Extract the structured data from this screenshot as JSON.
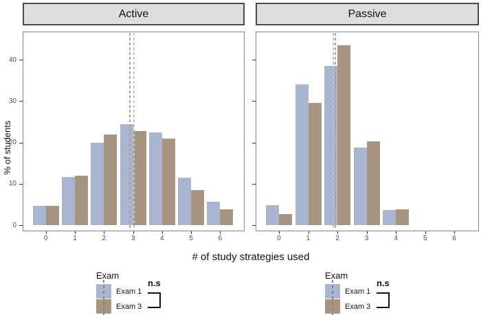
{
  "figure": {
    "x_label": "# of study strategies used",
    "y_label": "% of students"
  },
  "colors": {
    "exam1_fill": "#aab5d0",
    "exam3_fill": "#a79481",
    "exam1_line": "#b9c3d9",
    "exam3_line": "#b3a08d",
    "strip_fill": "#dedede",
    "strip_border": "#4a4a4a",
    "panel_border": "#838383",
    "tick_label": "#4d4d4d"
  },
  "legend": {
    "title": "Exam",
    "items": [
      {
        "label": "Exam 1",
        "color": "#aab5d0"
      },
      {
        "label": "Exam 3",
        "color": "#a79481"
      }
    ],
    "annotation": "n.s"
  },
  "chart_data": [
    {
      "type": "bar",
      "facet": "Active",
      "categories": [
        "0",
        "1",
        "2",
        "3",
        "4",
        "5",
        "6"
      ],
      "series": [
        {
          "name": "Exam 1",
          "color": "#aab5d0",
          "line_color": "#b9c3d9",
          "values": [
            4.7,
            11.6,
            19.9,
            24.5,
            22.4,
            11.5,
            5.6
          ],
          "mean_vline": 3.01
        },
        {
          "name": "Exam 3",
          "color": "#a79481",
          "line_color": "#b3a08d",
          "values": [
            4.7,
            11.9,
            22.0,
            22.7,
            20.9,
            8.5,
            3.9
          ],
          "mean_vline": 2.87
        }
      ],
      "title": "Active",
      "xlabel": "# of study strategies used",
      "ylabel": "% of students",
      "ylim": [
        0,
        47
      ],
      "yticks": [
        0,
        10,
        20,
        30,
        40
      ],
      "grid": false,
      "legend_position": "bottom",
      "legend_annotation": "n.s"
    },
    {
      "type": "bar",
      "facet": "Passive",
      "categories": [
        "0",
        "1",
        "2",
        "3",
        "4",
        "5",
        "6"
      ],
      "series": [
        {
          "name": "Exam 1",
          "color": "#aab5d0",
          "line_color": "#b9c3d9",
          "values": [
            4.8,
            34.1,
            38.6,
            18.7,
            3.6,
            0,
            0
          ],
          "mean_vline": 1.83
        },
        {
          "name": "Exam 3",
          "color": "#a79481",
          "line_color": "#b3a08d",
          "values": [
            2.6,
            29.6,
            43.6,
            20.3,
            3.8,
            0,
            0
          ],
          "mean_vline": 1.91
        }
      ],
      "title": "Passive",
      "xlabel": "# of study strategies used",
      "ylabel": "% of students",
      "ylim": [
        0,
        47
      ],
      "yticks": [
        0,
        10,
        20,
        30,
        40
      ],
      "grid": false,
      "legend_position": "bottom",
      "legend_annotation": "n.s"
    }
  ]
}
